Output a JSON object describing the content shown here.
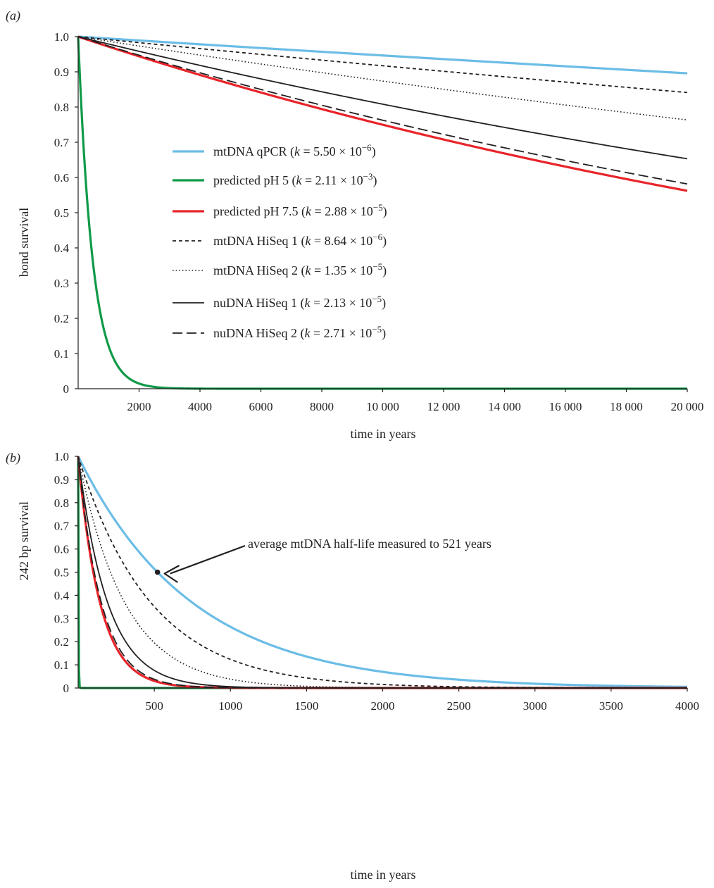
{
  "chart_data": [
    {
      "type": "line",
      "panel_label": "(a)",
      "title": "",
      "xlabel": "time in years",
      "ylabel": "bond survival",
      "xlim": [
        0,
        20000
      ],
      "ylim": [
        0,
        1.0
      ],
      "x_ticks": [
        2000,
        4000,
        6000,
        8000,
        10000,
        12000,
        14000,
        16000,
        18000,
        20000
      ],
      "x_tick_labels": [
        "2000",
        "4000",
        "6000",
        "8000",
        "10 000",
        "12 000",
        "14 000",
        "16 000",
        "18 000",
        "20 000"
      ],
      "y_ticks": [
        0,
        0.1,
        0.2,
        0.3,
        0.4,
        0.5,
        0.6,
        0.7,
        0.8,
        0.9,
        1.0
      ],
      "y_tick_labels": [
        "0",
        "0.1",
        "0.2",
        "0.3",
        "0.4",
        "0.5",
        "0.6",
        "0.7",
        "0.8",
        "0.9",
        "1.0"
      ],
      "model": "bond survival = exp(-k * t)",
      "grid": false,
      "legend_position": "center",
      "series": [
        {
          "name": "mtDNA qPCR",
          "k_label": "5.50",
          "k_exp": "−6",
          "k": 5.5e-06,
          "color": "#6bbde6",
          "style": "solid-thick"
        },
        {
          "name": "predicted pH 5",
          "k_label": "2.11",
          "k_exp": "−3",
          "k": 0.00211,
          "color": "#0f9a48",
          "style": "solid-thick"
        },
        {
          "name": "predicted pH 7.5",
          "k_label": "2.88",
          "k_exp": "−5",
          "k": 2.88e-05,
          "color": "#e8242a",
          "style": "solid-thick"
        },
        {
          "name": "mtDNA HiSeq 1",
          "k_label": "8.64",
          "k_exp": "−6",
          "k": 8.64e-06,
          "color": "#231f20",
          "style": "short-dash"
        },
        {
          "name": "mtDNA HiSeq 2",
          "k_label": "1.35",
          "k_exp": "−5",
          "k": 1.35e-05,
          "color": "#231f20",
          "style": "dotted"
        },
        {
          "name": "nuDNA HiSeq 1",
          "k_label": "2.13",
          "k_exp": "−5",
          "k": 2.13e-05,
          "color": "#231f20",
          "style": "solid"
        },
        {
          "name": "nuDNA HiSeq 2",
          "k_label": "2.71",
          "k_exp": "−5",
          "k": 2.71e-05,
          "color": "#231f20",
          "style": "long-dash"
        }
      ]
    },
    {
      "type": "line",
      "panel_label": "(b)",
      "title": "",
      "xlabel": "time in years",
      "ylabel": "242 bp survival",
      "xlim": [
        0,
        4000
      ],
      "ylim": [
        0,
        1.0
      ],
      "x_ticks": [
        500,
        1000,
        1500,
        2000,
        2500,
        3000,
        3500,
        4000
      ],
      "x_tick_labels": [
        "500",
        "1000",
        "1500",
        "2000",
        "2500",
        "3000",
        "3500",
        "4000"
      ],
      "y_ticks": [
        0,
        0.1,
        0.2,
        0.3,
        0.4,
        0.5,
        0.6,
        0.7,
        0.8,
        0.9,
        1.0
      ],
      "y_tick_labels": [
        "0",
        "0.1",
        "0.2",
        "0.3",
        "0.4",
        "0.5",
        "0.6",
        "0.7",
        "0.8",
        "0.9",
        "1.0"
      ],
      "model": "242 bp survival = exp(-242 * k * t)",
      "fragment_length_bp": 242,
      "grid": false,
      "annotation": {
        "text": "average mtDNA half-life measured to 521 years",
        "x": 521,
        "y": 0.5
      }
    }
  ]
}
